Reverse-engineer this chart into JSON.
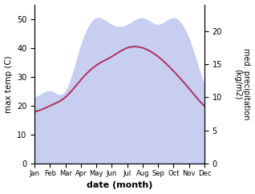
{
  "months": [
    "Jan",
    "Feb",
    "Mar",
    "Apr",
    "May",
    "Jun",
    "Jul",
    "Aug",
    "Sep",
    "Oct",
    "Nov",
    "Dec"
  ],
  "month_indices": [
    1,
    2,
    3,
    4,
    5,
    6,
    7,
    8,
    9,
    10,
    11,
    12
  ],
  "temp_max": [
    18,
    20,
    23,
    29,
    34,
    37,
    40,
    40,
    37,
    32,
    26,
    20
  ],
  "precipitation": [
    10,
    11,
    11,
    18,
    22,
    21,
    21,
    22,
    21,
    22,
    19,
    12
  ],
  "temp_ylim": [
    0,
    55
  ],
  "precip_ylim": [
    0,
    24.0
  ],
  "temp_yticks": [
    0,
    10,
    20,
    30,
    40,
    50
  ],
  "precip_yticks": [
    0,
    5,
    10,
    15,
    20
  ],
  "temp_line_color": "#b03060",
  "precip_fill_color": "#aab4e8",
  "precip_fill_alpha": 0.65,
  "ylabel_left": "max temp (C)",
  "ylabel_right": "med. precipitation\n(kg/m2)",
  "xlabel": "date (month)",
  "figsize": [
    3.18,
    2.42
  ],
  "dpi": 100
}
